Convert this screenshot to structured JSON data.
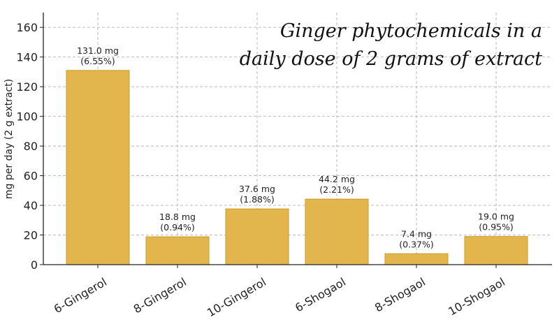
{
  "chart_data": {
    "type": "bar",
    "title_lines": [
      "Ginger phytochemicals in a",
      "daily dose of 2 grams of extract"
    ],
    "xlabel": "",
    "ylabel": "mg per day (2 g extract)",
    "ylim": [
      0,
      170
    ],
    "yticks": [
      0,
      20,
      40,
      60,
      80,
      100,
      120,
      140,
      160
    ],
    "grid": true,
    "bar_color": "#e2b64c",
    "bar_edge_color": "#c99a2e",
    "categories": [
      "6-Gingerol",
      "8-Gingerol",
      "10-Gingerol",
      "6-Shogaol",
      "8-Shogaol",
      "10-Shogaol"
    ],
    "values": [
      131.0,
      18.8,
      37.6,
      44.2,
      7.4,
      19.0
    ],
    "labels": [
      [
        "131.0 mg",
        "(6.55%)"
      ],
      [
        "18.8 mg",
        "(0.94%)"
      ],
      [
        "37.6 mg",
        "(1.88%)"
      ],
      [
        "44.2 mg",
        "(2.21%)"
      ],
      [
        "7.4 mg",
        "(0.37%)"
      ],
      [
        "19.0 mg",
        "(0.95%)"
      ]
    ]
  }
}
